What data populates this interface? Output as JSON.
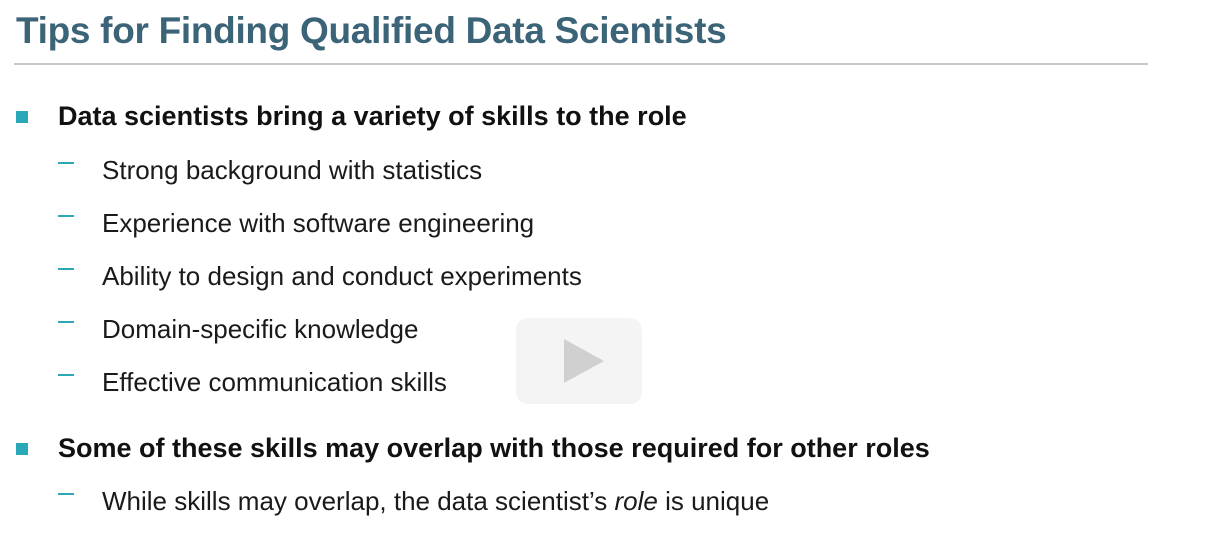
{
  "slide": {
    "title": "Tips for Finding Qualified Data Scientists",
    "bullets": [
      {
        "text": "Data scientists bring a variety of skills to the role",
        "subitems": [
          "Strong background with statistics",
          "Experience with software engineering",
          "Ability to design and conduct experiments",
          "Domain-specific knowledge",
          "Effective communication skills"
        ]
      },
      {
        "text": "Some of these skills may overlap with those required for other roles",
        "subitems": [
          {
            "before": "While skills may overlap, the data scientist’s ",
            "emphasis": "role",
            "after": " is unique"
          }
        ]
      }
    ]
  },
  "player": {
    "play_icon": "play-icon"
  },
  "colors": {
    "title": "#3b6478",
    "accent": "#2aa7b8",
    "text": "#111111",
    "rule": "#c9c9c9"
  }
}
